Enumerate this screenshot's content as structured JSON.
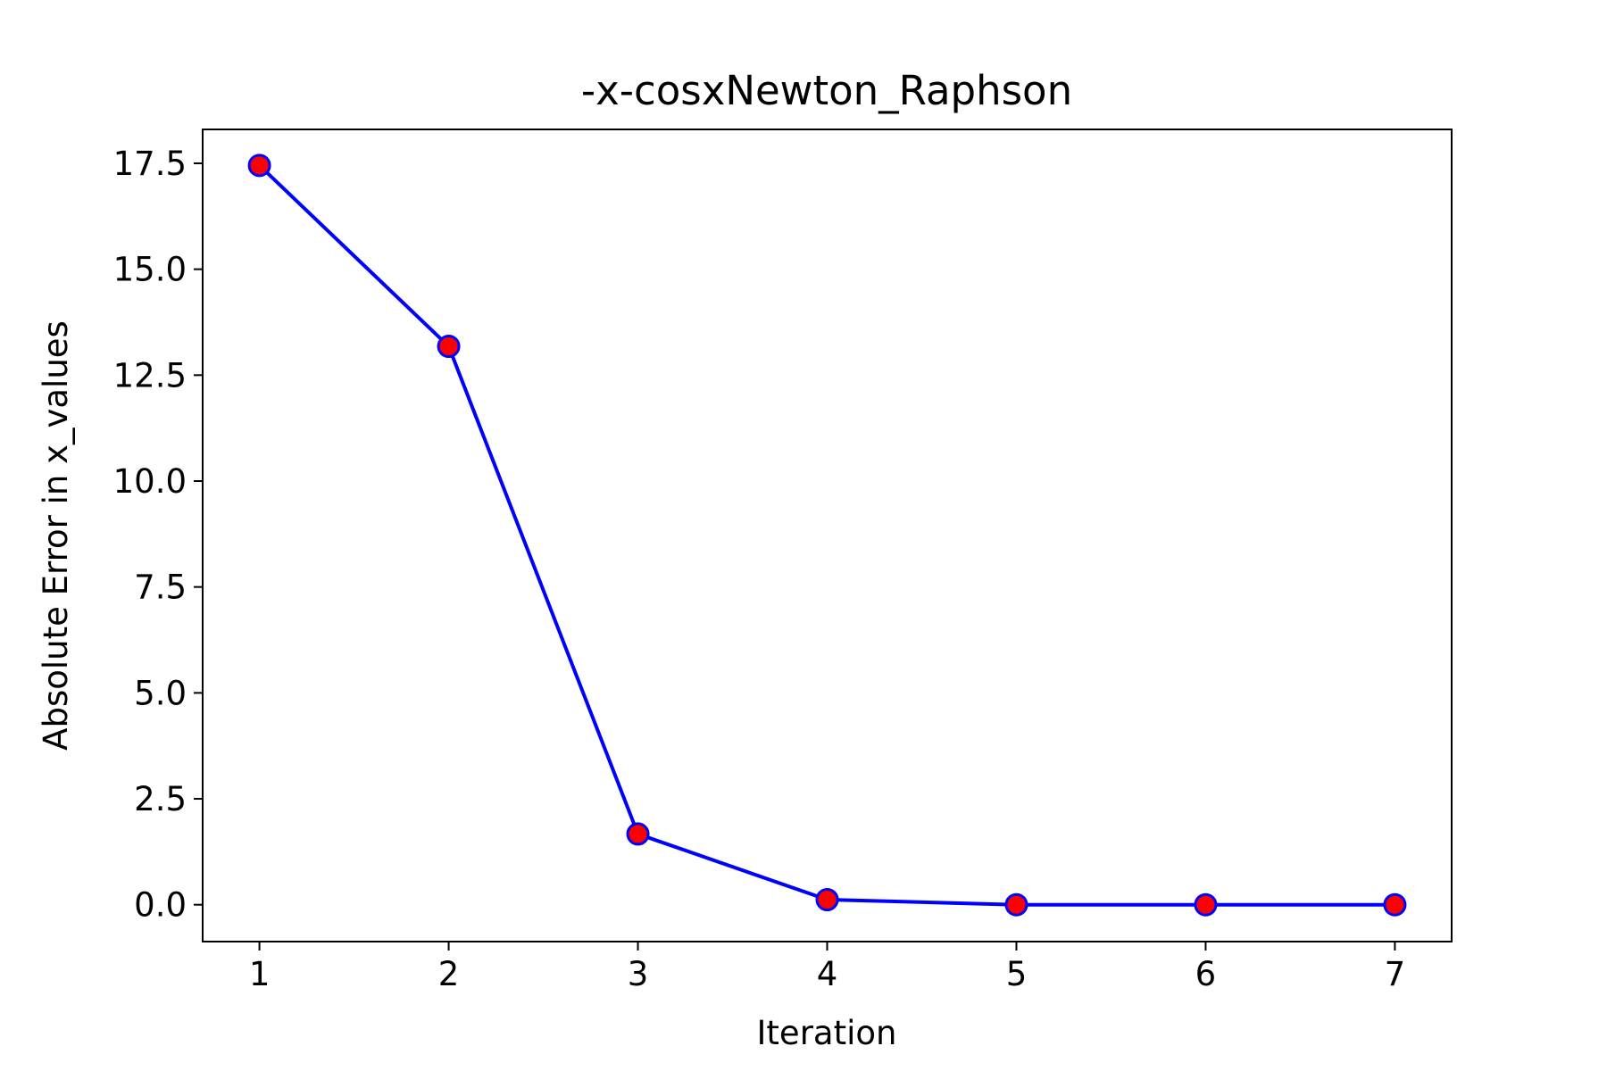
{
  "chart_data": {
    "type": "line",
    "title": "-x-cosxNewton_Raphson",
    "xlabel": "Iteration",
    "ylabel": "Absolute Error in x_values",
    "x": [
      1,
      2,
      3,
      4,
      5,
      6,
      7
    ],
    "x_ticks": [
      "1",
      "2",
      "3",
      "4",
      "5",
      "6",
      "7"
    ],
    "y_ticks": [
      "0.0",
      "2.5",
      "5.0",
      "7.5",
      "10.0",
      "12.5",
      "15.0",
      "17.5"
    ],
    "xlim": [
      0.7,
      7.3
    ],
    "ylim": [
      -0.87,
      18.3
    ],
    "grid": false,
    "series": [
      {
        "values": [
          17.45,
          13.18,
          1.67,
          0.12,
          0.0,
          0.0,
          0.0
        ],
        "line_color": "#0000ff",
        "marker_fill": "#ff0000",
        "marker_edge": "#0000ff",
        "marker": "circle"
      }
    ]
  }
}
